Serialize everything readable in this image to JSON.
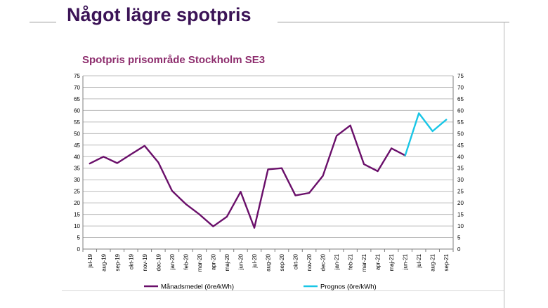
{
  "slide": {
    "title": "Något lägre spotpris"
  },
  "chart_data": {
    "type": "line",
    "title": "Spotpris prisområde Stockholm SE3",
    "xlabel": "",
    "ylabel": "",
    "ylim": [
      0,
      75
    ],
    "yticks": [
      0,
      5,
      10,
      15,
      20,
      25,
      30,
      35,
      40,
      45,
      50,
      55,
      60,
      65,
      70,
      75
    ],
    "secondary_y": true,
    "grid": "horizontal",
    "legend_position": "bottom",
    "categories": [
      "jul-19",
      "aug-19",
      "sep-19",
      "okt-19",
      "nov-19",
      "dec-19",
      "jan-20",
      "feb-20",
      "mar-20",
      "apr-20",
      "maj-20",
      "jun-20",
      "jul-20",
      "aug-20",
      "sep-20",
      "okt-20",
      "nov-20",
      "dec-20",
      "jan-21",
      "feb-21",
      "mar-21",
      "apr-21",
      "maj-21",
      "jun-21",
      "jul-21",
      "aug-21",
      "sep-21"
    ],
    "series": [
      {
        "name": "Månadsmedel (öre/kWh)",
        "color": "#6a0f6a",
        "values": [
          37,
          40,
          37.2,
          41,
          44.7,
          37.5,
          25.2,
          19.5,
          15,
          9.8,
          14,
          24.8,
          9.2,
          34.5,
          35,
          23.2,
          24.3,
          31.7,
          49,
          53.5,
          36.7,
          33.7,
          43.6,
          40.5,
          null,
          null,
          null
        ]
      },
      {
        "name": "Prognos (öre/kWh)",
        "color": "#19c6e6",
        "values": [
          null,
          null,
          null,
          null,
          null,
          null,
          null,
          null,
          null,
          null,
          null,
          null,
          null,
          null,
          null,
          null,
          null,
          null,
          null,
          null,
          null,
          null,
          null,
          40.5,
          58.8,
          51,
          56
        ]
      }
    ]
  }
}
